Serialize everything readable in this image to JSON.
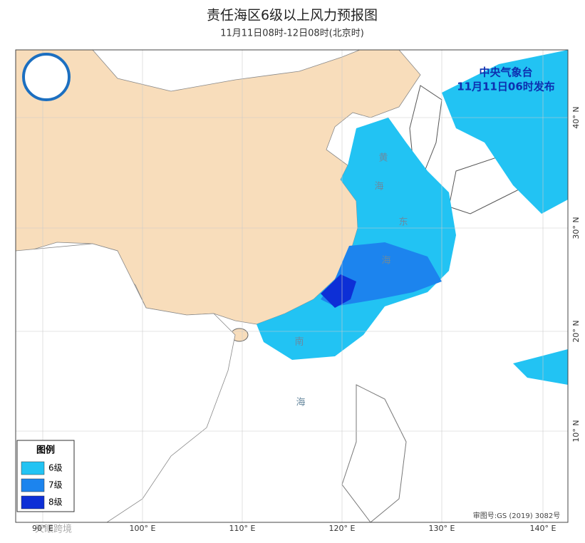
{
  "header": {
    "title": "责任海区6级以上风力预报图",
    "subtitle": "11月11日08时-12日08时(北京时)"
  },
  "issuer": {
    "agency": "中央气象台",
    "issued": "11月11日06时发布"
  },
  "legend": {
    "title": "图例",
    "items": [
      {
        "label": "6级",
        "color": "#22c3f3"
      },
      {
        "label": "7级",
        "color": "#1c84ee"
      },
      {
        "label": "8级",
        "color": "#0d2fd6"
      }
    ]
  },
  "axes": {
    "longitude": [
      "90° E",
      "100° E",
      "110° E",
      "120° E",
      "130° E",
      "140° E"
    ],
    "latitude": [
      "40° N",
      "30° N",
      "20° N",
      "10° N"
    ]
  },
  "sea_labels": [
    "黄",
    "海",
    "东",
    "海",
    "南",
    "海"
  ],
  "map_number": "审图号:GS (2019) 3082号",
  "watermark": "天眼跨境"
}
